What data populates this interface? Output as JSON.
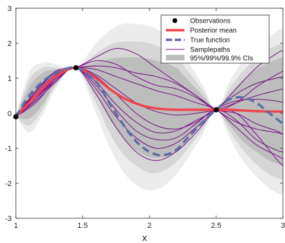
{
  "chart_data": {
    "type": "line",
    "title": "",
    "xlabel": "x",
    "ylabel": "",
    "xlim": [
      1,
      3
    ],
    "ylim": [
      -3,
      3
    ],
    "xticks": [
      1,
      1.5,
      2,
      2.5,
      3
    ],
    "yticks": [
      -3,
      -2,
      -1,
      0,
      1,
      2,
      3
    ],
    "xtick_labels": [
      "1",
      "1.5",
      "2",
      "2.5",
      "3"
    ],
    "ytick_labels": [
      "-3",
      "-2",
      "-1",
      "0",
      "1",
      "2",
      "3"
    ],
    "grid": false,
    "legend_position": "top-right",
    "legend": {
      "observations": "Observations",
      "posterior_mean": "Posterior mean",
      "true_function": "True function",
      "samplepaths": "Samplepaths",
      "cis": "95%/99%/99.9% CIs"
    },
    "colors": {
      "observations": "#000000",
      "posterior_mean": "#f0454b",
      "true_function": "#5b6ea6",
      "samplepaths": "#7a0a8a",
      "ci95": "#bdbdbd",
      "ci99": "#d6d6d6",
      "ci999": "#ececec"
    },
    "observations": {
      "x": [
        1,
        1.45,
        2.5
      ],
      "y": [
        -0.1,
        1.3,
        0.1
      ]
    },
    "posterior_mean": {
      "x": [
        1,
        1.1,
        1.2,
        1.3,
        1.45,
        1.6,
        1.7,
        1.8,
        1.9,
        2.0,
        2.1,
        2.2,
        2.3,
        2.4,
        2.5,
        2.6,
        2.7,
        2.8,
        2.9,
        3.0
      ],
      "y": [
        -0.1,
        0.3,
        0.7,
        1.05,
        1.3,
        1.0,
        0.7,
        0.45,
        0.28,
        0.17,
        0.12,
        0.1,
        0.1,
        0.1,
        0.1,
        0.1,
        0.08,
        0.06,
        0.05,
        0.05
      ]
    },
    "true_function": {
      "x": [
        1,
        1.1,
        1.2,
        1.3,
        1.45,
        1.6,
        1.7,
        1.8,
        1.9,
        2.0,
        2.1,
        2.2,
        2.3,
        2.4,
        2.5,
        2.6,
        2.7,
        2.8,
        2.9,
        3.0
      ],
      "y": [
        -0.1,
        0.5,
        0.9,
        1.15,
        1.3,
        0.9,
        0.3,
        -0.3,
        -0.8,
        -1.1,
        -1.2,
        -1.05,
        -0.65,
        -0.25,
        0.1,
        0.4,
        0.45,
        0.3,
        0.0,
        -0.3
      ]
    },
    "ci_bands": {
      "x": [
        1,
        1.1,
        1.2,
        1.3,
        1.45,
        1.6,
        1.7,
        1.8,
        1.9,
        2.0,
        2.1,
        2.2,
        2.3,
        2.4,
        2.5,
        2.6,
        2.7,
        2.8,
        2.9,
        3.0
      ],
      "ci95_upper": [
        -0.1,
        0.75,
        1.15,
        1.25,
        1.3,
        1.45,
        1.55,
        1.6,
        1.6,
        1.55,
        1.45,
        1.3,
        0.9,
        0.5,
        0.1,
        0.55,
        0.95,
        1.25,
        1.45,
        1.6
      ],
      "ci95_lower": [
        -0.1,
        -0.15,
        0.25,
        0.85,
        1.3,
        0.55,
        -0.15,
        -0.7,
        -1.05,
        -1.25,
        -1.25,
        -1.1,
        -0.7,
        -0.3,
        0.1,
        -0.35,
        -0.8,
        -1.1,
        -1.35,
        -1.5
      ],
      "ci99_upper": [
        -0.1,
        0.95,
        1.3,
        1.3,
        1.3,
        1.7,
        1.95,
        2.05,
        2.05,
        2.0,
        1.85,
        1.6,
        1.15,
        0.65,
        0.1,
        0.7,
        1.2,
        1.55,
        1.85,
        2.0
      ],
      "ci99_lower": [
        -0.1,
        -0.35,
        0.1,
        0.8,
        1.3,
        0.3,
        -0.55,
        -1.15,
        -1.5,
        -1.7,
        -1.65,
        -1.4,
        -0.95,
        -0.45,
        0.1,
        -0.5,
        -1.05,
        -1.45,
        -1.75,
        -1.9
      ],
      "ci999_upper": [
        -0.1,
        1.15,
        1.45,
        1.4,
        1.3,
        2.0,
        2.35,
        2.55,
        2.55,
        2.5,
        2.3,
        1.95,
        1.4,
        0.8,
        0.1,
        0.9,
        1.5,
        1.95,
        2.2,
        2.45
      ],
      "ci999_lower": [
        -0.1,
        -0.55,
        -0.05,
        0.7,
        1.3,
        0.0,
        -0.95,
        -1.65,
        -2.05,
        -2.2,
        -2.1,
        -1.75,
        -1.2,
        -0.6,
        0.1,
        -0.7,
        -1.35,
        -1.8,
        -2.15,
        -2.35
      ]
    },
    "samplepaths": [
      {
        "x": [
          1,
          1.15,
          1.3,
          1.45,
          1.6,
          1.75,
          1.9,
          2.05,
          2.2,
          2.35,
          2.5,
          2.65,
          2.8,
          2.95,
          3.0
        ],
        "y": [
          -0.1,
          0.6,
          1.2,
          1.3,
          1.5,
          1.4,
          1.05,
          0.8,
          0.7,
          0.45,
          0.1,
          0.0,
          -0.3,
          -0.5,
          -0.6
        ]
      },
      {
        "x": [
          1,
          1.15,
          1.3,
          1.45,
          1.6,
          1.75,
          1.9,
          2.05,
          2.2,
          2.35,
          2.5,
          2.65,
          2.8,
          2.95,
          3.0
        ],
        "y": [
          -0.1,
          0.45,
          1.0,
          1.3,
          1.1,
          0.7,
          0.3,
          0.05,
          -0.05,
          0.0,
          0.1,
          0.3,
          0.5,
          0.65,
          0.7
        ]
      },
      {
        "x": [
          1,
          1.15,
          1.3,
          1.45,
          1.6,
          1.75,
          1.9,
          2.05,
          2.2,
          2.35,
          2.5,
          2.65,
          2.8,
          2.95,
          3.0
        ],
        "y": [
          -0.1,
          0.3,
          0.95,
          1.3,
          0.7,
          -0.1,
          -0.7,
          -1.0,
          -0.85,
          -0.4,
          0.1,
          0.55,
          0.85,
          1.0,
          1.05
        ]
      },
      {
        "x": [
          1,
          1.15,
          1.3,
          1.45,
          1.6,
          1.75,
          1.9,
          2.05,
          2.2,
          2.35,
          2.5,
          2.65,
          2.8,
          2.95,
          3.0
        ],
        "y": [
          -0.1,
          0.6,
          1.15,
          1.3,
          1.6,
          1.85,
          1.7,
          1.3,
          0.9,
          0.5,
          0.1,
          -0.25,
          -0.45,
          -0.55,
          -0.6
        ]
      },
      {
        "x": [
          1,
          1.15,
          1.3,
          1.45,
          1.6,
          1.75,
          1.9,
          2.05,
          2.2,
          2.35,
          2.5,
          2.65,
          2.8,
          2.95,
          3.0
        ],
        "y": [
          -0.1,
          0.4,
          1.0,
          1.3,
          0.9,
          0.25,
          -0.25,
          -0.55,
          -0.5,
          -0.2,
          0.1,
          0.7,
          1.3,
          1.7,
          1.8
        ]
      },
      {
        "x": [
          1,
          1.15,
          1.3,
          1.45,
          1.6,
          1.75,
          1.9,
          2.05,
          2.2,
          2.35,
          2.5,
          2.65,
          2.8,
          2.95,
          3.0
        ],
        "y": [
          -0.1,
          0.55,
          1.1,
          1.3,
          1.25,
          1.05,
          0.85,
          0.65,
          0.5,
          0.3,
          0.1,
          -0.4,
          -0.9,
          -1.2,
          -1.3
        ]
      },
      {
        "x": [
          1,
          1.15,
          1.3,
          1.45,
          1.6,
          1.75,
          1.9,
          2.05,
          2.2,
          2.35,
          2.5,
          2.65,
          2.8,
          2.95,
          3.0
        ],
        "y": [
          -0.1,
          0.35,
          0.9,
          1.3,
          0.55,
          -0.4,
          -1.1,
          -1.35,
          -1.1,
          -0.55,
          0.1,
          0.35,
          0.4,
          0.35,
          0.3
        ]
      },
      {
        "x": [
          1,
          1.15,
          1.3,
          1.45,
          1.6,
          1.75,
          1.9,
          2.05,
          2.2,
          2.35,
          2.5,
          2.65,
          2.8,
          2.95,
          3.0
        ],
        "y": [
          -0.1,
          0.5,
          1.05,
          1.3,
          1.05,
          0.55,
          0.0,
          -0.35,
          -0.45,
          -0.25,
          0.1,
          0.0,
          -0.6,
          -1.3,
          -1.5
        ]
      },
      {
        "x": [
          1,
          1.15,
          1.3,
          1.45,
          1.6,
          1.75,
          1.9,
          2.05,
          2.2,
          2.35,
          2.5,
          2.65,
          2.8,
          2.95,
          3.0
        ],
        "y": [
          -0.1,
          0.65,
          1.2,
          1.3,
          1.35,
          1.3,
          1.15,
          1.05,
          0.85,
          0.5,
          0.1,
          0.3,
          0.75,
          1.1,
          1.2
        ]
      },
      {
        "x": [
          1,
          1.15,
          1.3,
          1.45,
          1.6,
          1.75,
          1.9,
          2.05,
          2.2,
          2.35,
          2.5,
          2.65,
          2.8,
          2.95,
          3.0
        ],
        "y": [
          -0.1,
          0.4,
          0.95,
          1.3,
          0.8,
          0.1,
          -0.5,
          -0.75,
          -0.7,
          -0.3,
          0.1,
          -0.2,
          -0.75,
          -1.05,
          -1.1
        ]
      }
    ]
  }
}
